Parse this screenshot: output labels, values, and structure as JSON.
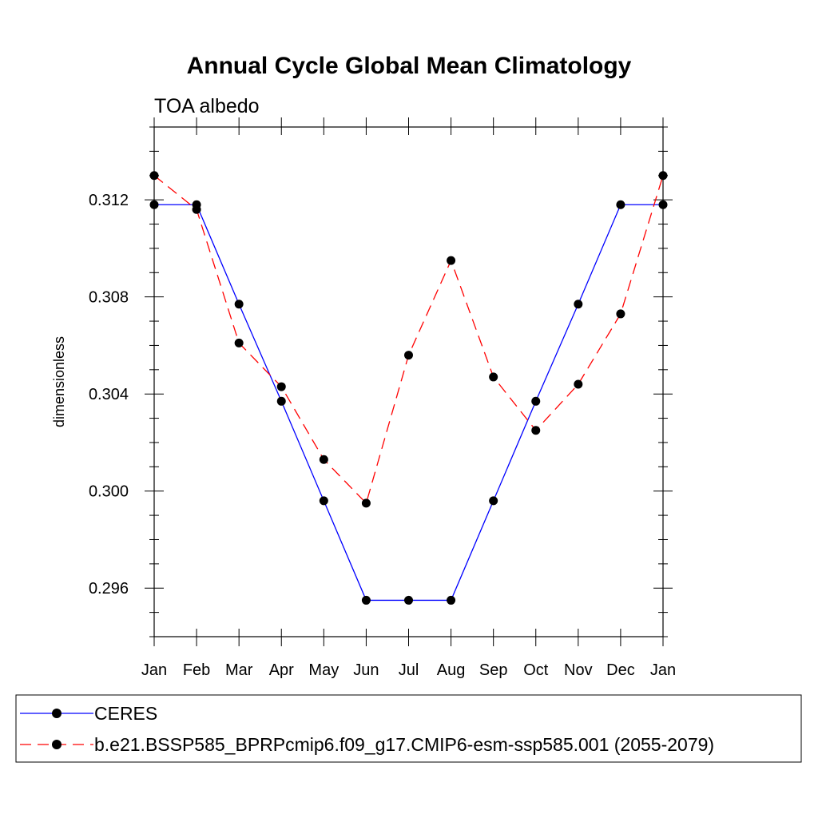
{
  "chart_data": {
    "type": "line",
    "title": "Annual Cycle Global Mean Climatology",
    "subtitle": "TOA albedo",
    "ylabel": "dimensionless",
    "xlabel": "",
    "categories": [
      "Jan",
      "Feb",
      "Mar",
      "Apr",
      "May",
      "Jun",
      "Jul",
      "Aug",
      "Sep",
      "Oct",
      "Nov",
      "Dec",
      "Jan"
    ],
    "ylim": [
      0.294,
      0.315
    ],
    "yticks": [
      0.296,
      0.3,
      0.304,
      0.308,
      0.312
    ],
    "ytick_labels": [
      "0.296",
      "0.300",
      "0.304",
      "0.308",
      "0.312"
    ],
    "series": [
      {
        "name": "CERES",
        "color": "#0000ff",
        "style": "solid",
        "values": [
          0.3118,
          0.3118,
          0.3077,
          0.3037,
          0.2996,
          0.2955,
          0.2955,
          0.2955,
          0.2996,
          0.3037,
          0.3077,
          0.3118,
          0.3118
        ]
      },
      {
        "name": "b.e21.BSSP585_BPRPcmip6.f09_g17.CMIP6-esm-ssp585.001 (2055-2079)",
        "color": "#ff0000",
        "style": "dashed",
        "values": [
          0.313,
          0.3116,
          0.3061,
          0.3043,
          0.3013,
          0.2995,
          0.3056,
          0.3095,
          0.3047,
          0.3025,
          0.3044,
          0.3073,
          0.313
        ]
      }
    ],
    "legend_position": "bottom"
  }
}
